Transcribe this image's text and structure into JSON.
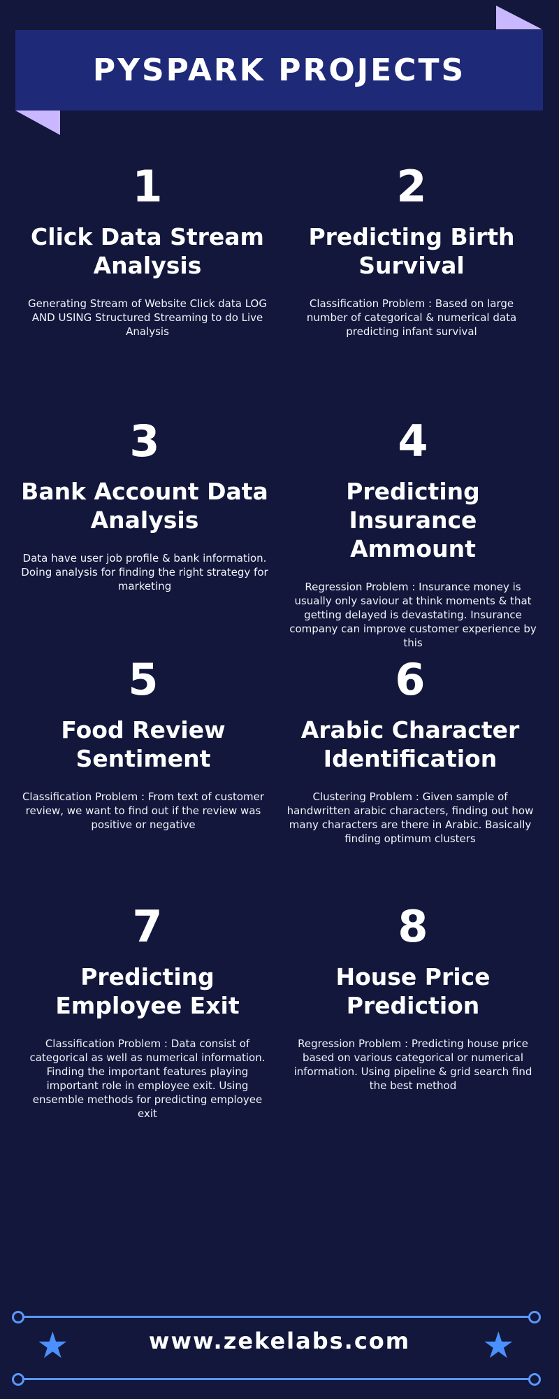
{
  "header": {
    "title": "PYSPARK PROJECTS"
  },
  "projects": [
    {
      "number": "1",
      "title": "Click Data Stream Analysis",
      "description": "Generating Stream of Website Click data LOG AND USING Structured Streaming to do Live Analysis"
    },
    {
      "number": "2",
      "title": "Predicting Birth Survival",
      "description": "Classification Problem : Based on large number of categorical & numerical data predicting infant survival"
    },
    {
      "number": "3",
      "title": "Bank Account Data Analysis",
      "description": "Data have user job profile & bank information. Doing analysis for finding the right strategy for marketing"
    },
    {
      "number": "4",
      "title": "Predicting Insurance Ammount",
      "description": "Regression Problem : Insurance money is usually only saviour at think moments & that getting delayed is devastating. Insurance company can improve customer experience by this"
    },
    {
      "number": "5",
      "title": "Food Review Sentiment",
      "description": "Classification Problem : From text of customer review, we want to find out if the review was positive or negative"
    },
    {
      "number": "6",
      "title": "Arabic Character Identification",
      "description": "Clustering Problem : Given sample of handwritten arabic characters, finding out how many characters are there in Arabic. Basically finding optimum clusters"
    },
    {
      "number": "7",
      "title": "Predicting Employee Exit",
      "description": "Classification Problem : Data consist of categorical as well as numerical information. Finding the important features playing important role in employee exit. Using ensemble methods for predicting employee exit"
    },
    {
      "number": "8",
      "title": "House Price Prediction",
      "description": "Regression Problem : Predicting house price based on various categorical or numerical information.  Using pipeline & grid search find the best method"
    }
  ],
  "footer": {
    "url": "www.zekelabs.com",
    "left_icon": "star-icon",
    "right_icon": "star-icon"
  },
  "colors": {
    "background": "#12173b",
    "banner": "#1e2a78",
    "accent_lavender": "#c9b8ff",
    "footer_blue": "#5a97ff"
  }
}
